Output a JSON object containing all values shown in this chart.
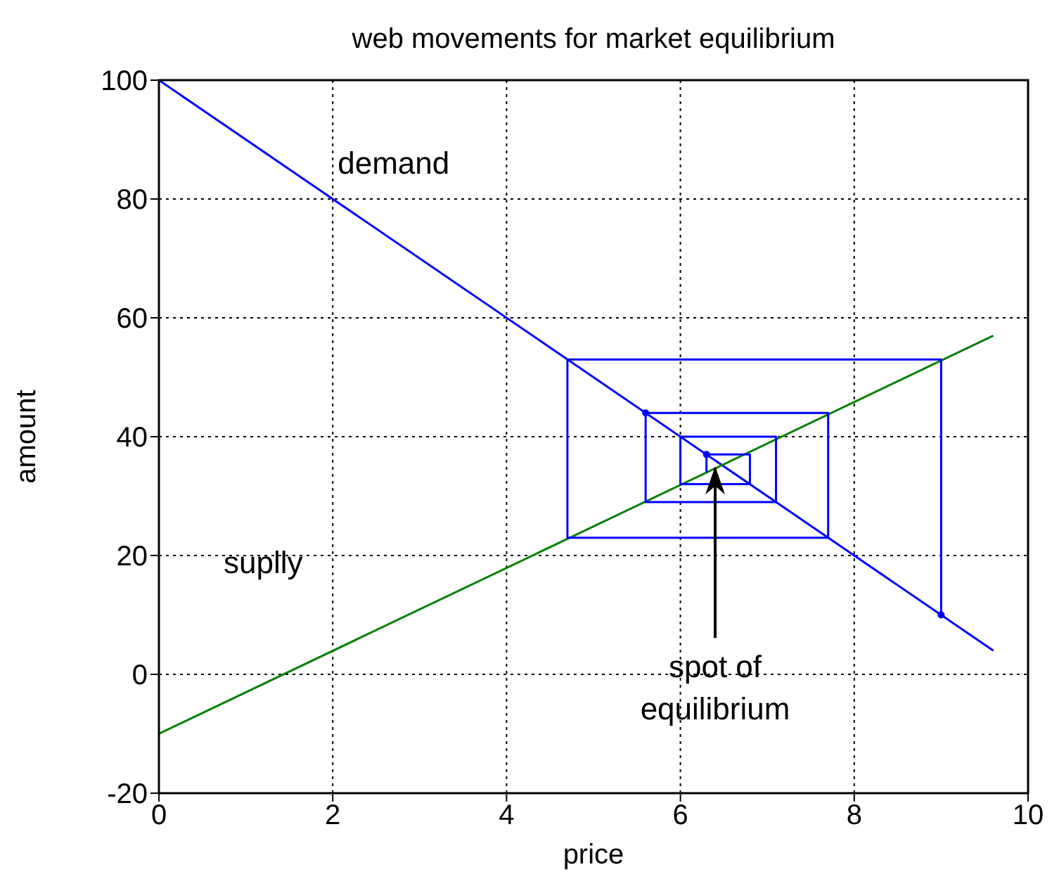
{
  "chart_data": {
    "type": "line",
    "title": "web movements for market equilibrium",
    "xlabel": "price",
    "ylabel": "amount",
    "xlim": [
      0,
      10
    ],
    "xticks": [
      0,
      2,
      4,
      6,
      8,
      10
    ],
    "ylim": [
      -20,
      100
    ],
    "yticks": [
      -20,
      0,
      20,
      40,
      60,
      80,
      100
    ],
    "grid": true,
    "marker": "none",
    "line_style": "solid",
    "series": [
      {
        "color": "#0000ff",
        "x": [
          0,
          9.6
        ],
        "values": [
          100,
          4
        ]
      },
      {
        "color": "#008000",
        "x": [
          0,
          9.6
        ],
        "values": [
          -10,
          57
        ]
      },
      {
        "color": "#0000ff",
        "x": [
          9,
          9,
          4.7,
          4.7,
          7.7,
          7.7,
          5.6,
          5.6,
          7.1,
          7.1,
          6.0,
          6.0,
          6.8,
          6.8,
          6.3,
          6.3
        ],
        "values": [
          10,
          53,
          53,
          23,
          23,
          44,
          44,
          29,
          29,
          40,
          40,
          32,
          32,
          37,
          37,
          34
        ]
      },
      {
        "type": "scatter",
        "marker": "circle",
        "color": "#0000ff",
        "x": [
          9,
          5.6,
          6.3
        ],
        "values": [
          10,
          44,
          37
        ]
      }
    ],
    "annotations": [
      "demand",
      "suplly",
      {
        "text": "spot of\nequilibrium",
        "x": 6.4,
        "y": 35
      }
    ]
  }
}
